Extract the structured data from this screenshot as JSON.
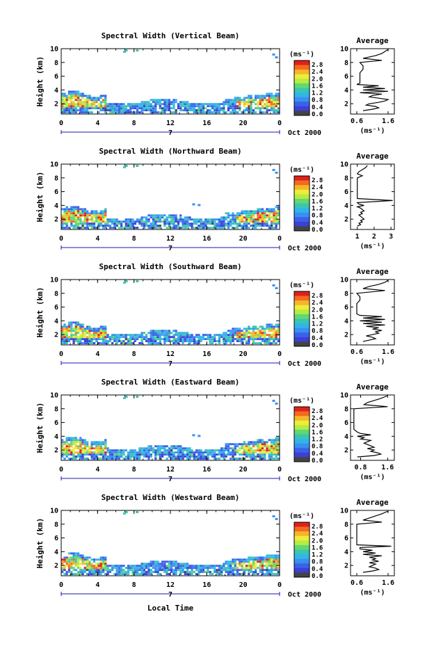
{
  "colorbar": {
    "unit_label": "(ms⁻¹)",
    "ticks": [
      "2.8",
      "2.4",
      "2.0",
      "1.6",
      "1.2",
      "0.8",
      "0.4",
      "0.0"
    ],
    "colors": [
      "#e0201c",
      "#f46a1e",
      "#f7b52a",
      "#eded3a",
      "#b6eb42",
      "#62d871",
      "#3cc5b0",
      "#2fb6e8",
      "#3a8ff2",
      "#3a62e8",
      "#3d3fd6",
      "#444444"
    ]
  },
  "date_label": "Oct 2000",
  "x_axis": {
    "ticks": [
      "0",
      "4",
      "8",
      "12",
      "16",
      "20",
      "0"
    ],
    "day_marker": "7",
    "xlabel": "Local Time"
  },
  "height_axis": {
    "ylabel": "Height (km)",
    "ticks": [
      "2",
      "4",
      "6",
      "8",
      "10"
    ]
  },
  "chart_data": [
    {
      "type": "heatmap",
      "title": "Spectral Width (Vertical Beam)",
      "profile_title": "Average",
      "profile_xlabel": "(ms⁻¹)",
      "profile_xticks": [
        "0.6",
        "1.6"
      ],
      "profile_xlim": [
        0.4,
        1.8
      ],
      "profile": [
        [
          0.8,
          1.0
        ],
        [
          1.1,
          1.2
        ],
        [
          1.3,
          1.4
        ],
        [
          1.2,
          1.6
        ],
        [
          0.9,
          1.8
        ],
        [
          1.0,
          2.0
        ],
        [
          1.3,
          2.2
        ],
        [
          1.5,
          2.4
        ],
        [
          1.6,
          2.6
        ],
        [
          1.3,
          2.8
        ],
        [
          1.0,
          3.0
        ],
        [
          1.1,
          3.2
        ],
        [
          1.4,
          3.4
        ],
        [
          0.7,
          3.6
        ],
        [
          1.6,
          3.8
        ],
        [
          0.8,
          4.0
        ],
        [
          1.5,
          4.2
        ],
        [
          0.8,
          4.4
        ],
        [
          1.3,
          4.6
        ],
        [
          0.6,
          4.8
        ],
        [
          0.7,
          5.0
        ],
        [
          0.7,
          5.5
        ],
        [
          0.7,
          6.0
        ],
        [
          0.7,
          6.5
        ],
        [
          0.8,
          7.0
        ],
        [
          0.8,
          7.5
        ],
        [
          0.7,
          8.0
        ],
        [
          1.4,
          8.3
        ],
        [
          0.8,
          8.6
        ],
        [
          1.0,
          8.8
        ],
        [
          1.2,
          9.0
        ],
        [
          1.4,
          9.3
        ],
        [
          1.5,
          9.6
        ],
        [
          1.6,
          9.9
        ]
      ]
    },
    {
      "type": "heatmap",
      "title": "Spectral Width (Northward Beam)",
      "profile_title": "Average",
      "profile_xlabel": "(ms⁻¹)",
      "profile_xticks": [
        "1",
        "2",
        "3"
      ],
      "profile_xlim": [
        0.6,
        3.2
      ],
      "profile": [
        [
          1.0,
          1.0
        ],
        [
          1.2,
          1.2
        ],
        [
          1.1,
          1.4
        ],
        [
          1.3,
          1.6
        ],
        [
          1.2,
          1.8
        ],
        [
          1.4,
          2.0
        ],
        [
          1.3,
          2.2
        ],
        [
          1.2,
          2.4
        ],
        [
          1.1,
          2.6
        ],
        [
          1.3,
          2.8
        ],
        [
          1.2,
          3.0
        ],
        [
          1.4,
          3.2
        ],
        [
          1.3,
          3.4
        ],
        [
          1.2,
          3.6
        ],
        [
          1.0,
          3.8
        ],
        [
          1.4,
          4.0
        ],
        [
          1.1,
          4.2
        ],
        [
          1.0,
          4.4
        ],
        [
          3.1,
          4.7
        ],
        [
          1.0,
          5.0
        ],
        [
          1.0,
          5.5
        ],
        [
          1.0,
          6.0
        ],
        [
          1.0,
          6.5
        ],
        [
          1.0,
          7.0
        ],
        [
          1.0,
          7.5
        ],
        [
          1.0,
          8.0
        ],
        [
          1.3,
          8.3
        ],
        [
          1.0,
          8.6
        ],
        [
          1.1,
          8.9
        ],
        [
          1.3,
          9.2
        ],
        [
          1.5,
          9.5
        ],
        [
          1.6,
          9.8
        ]
      ]
    },
    {
      "type": "heatmap",
      "title": "Spectral Width (Southward Beam)",
      "profile_title": "Average",
      "profile_xlabel": "(ms⁻¹)",
      "profile_xticks": [
        "0.6",
        "1.6"
      ],
      "profile_xlim": [
        0.4,
        1.8
      ],
      "profile": [
        [
          0.8,
          1.0
        ],
        [
          1.0,
          1.2
        ],
        [
          1.2,
          1.4
        ],
        [
          1.1,
          1.6
        ],
        [
          0.9,
          1.8
        ],
        [
          1.1,
          2.0
        ],
        [
          1.3,
          2.2
        ],
        [
          1.2,
          2.4
        ],
        [
          1.4,
          2.6
        ],
        [
          1.1,
          2.8
        ],
        [
          1.3,
          3.0
        ],
        [
          0.9,
          3.2
        ],
        [
          1.5,
          3.4
        ],
        [
          0.8,
          3.6
        ],
        [
          1.4,
          3.8
        ],
        [
          0.7,
          4.0
        ],
        [
          1.5,
          4.2
        ],
        [
          0.8,
          4.4
        ],
        [
          1.4,
          4.6
        ],
        [
          0.7,
          4.8
        ],
        [
          0.6,
          5.0
        ],
        [
          0.6,
          5.5
        ],
        [
          0.6,
          6.0
        ],
        [
          0.6,
          6.5
        ],
        [
          0.7,
          7.0
        ],
        [
          0.7,
          7.5
        ],
        [
          0.6,
          8.0
        ],
        [
          1.5,
          8.4
        ],
        [
          0.8,
          8.7
        ],
        [
          1.0,
          9.0
        ],
        [
          1.3,
          9.3
        ],
        [
          1.5,
          9.6
        ],
        [
          1.6,
          9.9
        ]
      ]
    },
    {
      "type": "heatmap",
      "title": "Spectral Width (Eastward Beam)",
      "profile_title": "Average",
      "profile_xlabel": "(ms⁻¹)",
      "profile_xticks": [
        "0.8",
        "1.6"
      ],
      "profile_xlim": [
        0.5,
        1.8
      ],
      "profile": [
        [
          0.7,
          1.0
        ],
        [
          1.2,
          1.2
        ],
        [
          1.4,
          1.4
        ],
        [
          1.3,
          1.6
        ],
        [
          1.1,
          1.8
        ],
        [
          1.2,
          2.0
        ],
        [
          1.0,
          2.2
        ],
        [
          1.2,
          2.4
        ],
        [
          1.1,
          2.6
        ],
        [
          1.0,
          2.8
        ],
        [
          0.9,
          3.0
        ],
        [
          1.0,
          3.2
        ],
        [
          1.1,
          3.4
        ],
        [
          0.8,
          3.6
        ],
        [
          0.9,
          3.8
        ],
        [
          0.7,
          4.0
        ],
        [
          1.1,
          4.2
        ],
        [
          0.8,
          4.4
        ],
        [
          0.7,
          4.6
        ],
        [
          0.6,
          5.0
        ],
        [
          0.6,
          5.5
        ],
        [
          0.6,
          6.0
        ],
        [
          0.6,
          6.5
        ],
        [
          0.6,
          7.0
        ],
        [
          0.6,
          7.5
        ],
        [
          0.6,
          8.0
        ],
        [
          1.6,
          8.3
        ],
        [
          0.9,
          8.6
        ],
        [
          1.0,
          8.9
        ],
        [
          1.2,
          9.2
        ],
        [
          1.4,
          9.5
        ],
        [
          1.6,
          9.9
        ]
      ]
    },
    {
      "type": "heatmap",
      "title": "Spectral Width (Westward Beam)",
      "profile_title": "Average",
      "profile_xlabel": "(ms⁻¹)",
      "profile_xticks": [
        "0.6",
        "1.6"
      ],
      "profile_xlim": [
        0.4,
        1.8
      ],
      "profile": [
        [
          0.8,
          1.0
        ],
        [
          1.1,
          1.2
        ],
        [
          1.3,
          1.4
        ],
        [
          1.2,
          1.6
        ],
        [
          1.0,
          1.8
        ],
        [
          1.1,
          2.0
        ],
        [
          1.2,
          2.2
        ],
        [
          1.0,
          2.4
        ],
        [
          1.3,
          2.6
        ],
        [
          1.1,
          2.8
        ],
        [
          1.2,
          3.0
        ],
        [
          1.0,
          3.2
        ],
        [
          1.4,
          3.4
        ],
        [
          0.8,
          3.6
        ],
        [
          1.2,
          3.8
        ],
        [
          0.8,
          4.0
        ],
        [
          1.1,
          4.2
        ],
        [
          0.7,
          4.4
        ],
        [
          0.7,
          4.6
        ],
        [
          1.7,
          4.8
        ],
        [
          0.6,
          5.0
        ],
        [
          0.6,
          5.5
        ],
        [
          0.6,
          6.0
        ],
        [
          0.6,
          6.5
        ],
        [
          0.6,
          7.0
        ],
        [
          0.6,
          7.5
        ],
        [
          0.6,
          8.0
        ],
        [
          1.4,
          8.3
        ],
        [
          0.8,
          8.6
        ],
        [
          1.0,
          8.9
        ],
        [
          1.2,
          9.2
        ],
        [
          1.4,
          9.5
        ],
        [
          1.6,
          9.9
        ]
      ]
    }
  ]
}
